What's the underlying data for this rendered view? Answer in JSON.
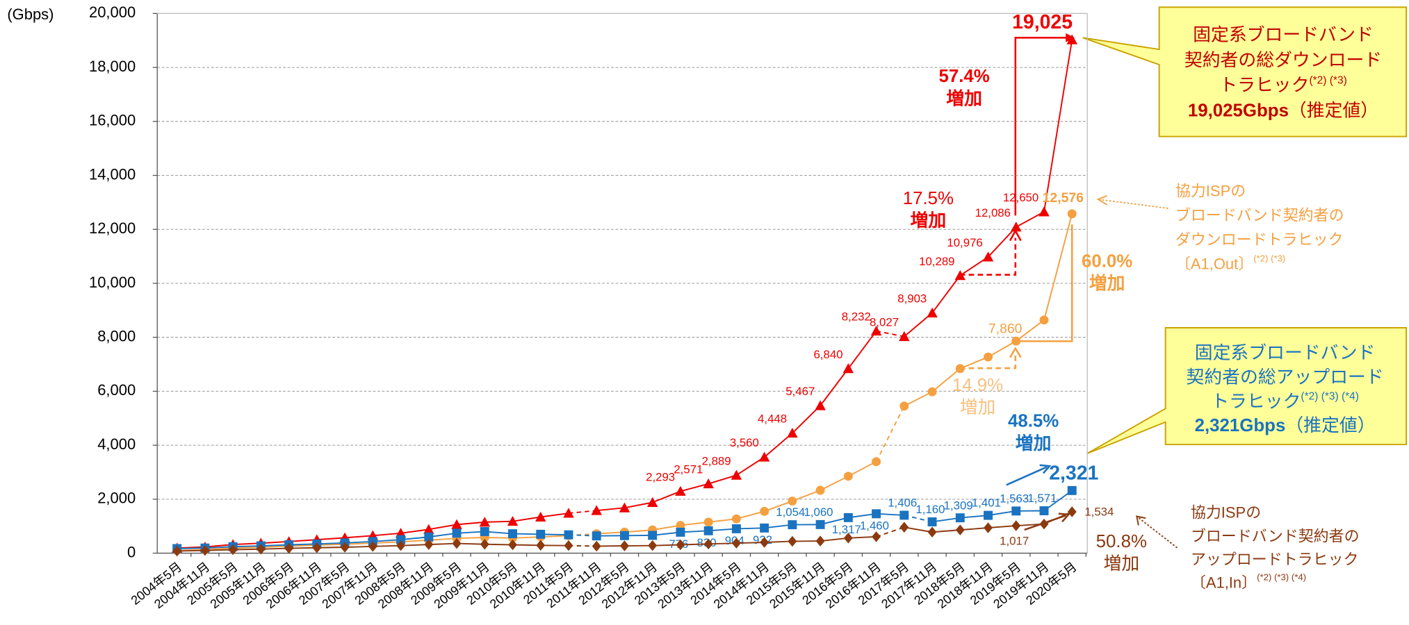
{
  "chart_data": {
    "type": "line",
    "y_axis_label": "(Gbps)",
    "categories": [
      "2004年5月",
      "2004年11月",
      "2005年5月",
      "2005年11月",
      "2006年5月",
      "2006年11月",
      "2007年5月",
      "2007年11月",
      "2008年5月",
      "2008年11月",
      "2009年5月",
      "2009年11月",
      "2010年5月",
      "2010年11月",
      "2011年5月",
      "2011年11月",
      "2012年5月",
      "2012年11月",
      "2013年5月",
      "2013年11月",
      "2014年5月",
      "2014年11月",
      "2015年5月",
      "2015年11月",
      "2016年5月",
      "2016年11月",
      "2017年5月",
      "2017年11月",
      "2018年5月",
      "2018年11月",
      "2019年5月",
      "2019年11月",
      "2020年5月"
    ],
    "ylim": [
      0,
      20000
    ],
    "yticks": [
      0,
      {
        "value": 2000,
        "label": "2,000"
      },
      {
        "value": 4000,
        "label": "4,000"
      },
      {
        "value": 6000,
        "label": "6,000"
      },
      {
        "value": 8000,
        "label": "8,000"
      },
      {
        "value": 10000,
        "label": "10,000"
      },
      {
        "value": 12000,
        "label": "12,000"
      },
      {
        "value": 14000,
        "label": "14,000"
      },
      {
        "value": 16000,
        "label": "16,000"
      },
      {
        "value": 18000,
        "label": "18,000"
      },
      {
        "value": 20000,
        "label": "20,000"
      }
    ],
    "grid": true,
    "series": [
      {
        "name": "固定系ブロードバンド契約者の総ダウンロードトラヒック",
        "color": "#ee0000",
        "marker": "triangle",
        "dashed_segments": [
          14,
          25
        ],
        "values": [
          190,
          230,
          320,
          370,
          430,
          500,
          570,
          650,
          740,
          880,
          1060,
          1150,
          1180,
          1340,
          1480,
          1580,
          1680,
          1880,
          2293,
          2571,
          2889,
          3560,
          4448,
          5467,
          6840,
          8232,
          8027,
          8903,
          10289,
          10976,
          12086,
          12650,
          19025
        ],
        "value_labels": [
          null,
          null,
          null,
          null,
          null,
          null,
          null,
          null,
          null,
          null,
          null,
          null,
          null,
          null,
          null,
          null,
          null,
          null,
          "2,293",
          "2,571",
          "2,889",
          "3,560",
          "4,448",
          "5,467",
          "6,840",
          "8,232",
          "8,027",
          "8,903",
          "10,289",
          "10,976",
          "12,086",
          "12,650",
          "19,025"
        ]
      },
      {
        "name": "協力ISPのブロードバンド契約者のダウンロードトラヒック",
        "color": "#f4a040",
        "marker": "circle",
        "dashed_segments": [
          14,
          25
        ],
        "values": [
          100,
          130,
          190,
          220,
          260,
          300,
          330,
          370,
          420,
          480,
          550,
          580,
          560,
          600,
          650,
          720,
          780,
          860,
          1030,
          1150,
          1270,
          1550,
          1930,
          2330,
          2850,
          3390,
          5450,
          5980,
          6840,
          7270,
          7860,
          8640,
          12576
        ],
        "value_labels": [
          null,
          null,
          null,
          null,
          null,
          null,
          null,
          null,
          null,
          null,
          null,
          null,
          null,
          null,
          null,
          null,
          null,
          null,
          null,
          null,
          null,
          null,
          null,
          null,
          null,
          null,
          null,
          null,
          null,
          null,
          "7,860",
          null,
          "12,576"
        ]
      },
      {
        "name": "固定系ブロードバンド契約者の総アップロードトラヒック",
        "color": "#1a73c0",
        "marker": "square",
        "dashed_segments": [
          14,
          26
        ],
        "values": [
          170,
          190,
          240,
          270,
          310,
          340,
          380,
          430,
          500,
          600,
          740,
          800,
          720,
          700,
          680,
          640,
          650,
          660,
          776,
          830,
          904,
          932,
          1054,
          1060,
          1317,
          1460,
          1406,
          1160,
          1309,
          1401,
          1563,
          1571,
          2321
        ],
        "value_labels": [
          null,
          null,
          null,
          null,
          null,
          null,
          null,
          null,
          null,
          null,
          null,
          null,
          null,
          null,
          null,
          null,
          null,
          null,
          "776",
          "830",
          "904",
          "932",
          "1,054",
          "1,060",
          "1,317",
          "1,460",
          "1,406",
          "1,160",
          "1,309",
          "1,401",
          "1,563",
          "1,571",
          "2,321"
        ]
      },
      {
        "name": "協力ISPのブロードバンド契約者のアップロードトラヒック",
        "color": "#8b3a10",
        "marker": "diamond",
        "dashed_segments": [
          14,
          25
        ],
        "values": [
          80,
          100,
          130,
          150,
          180,
          200,
          220,
          250,
          280,
          320,
          360,
          330,
          310,
          290,
          280,
          260,
          270,
          280,
          310,
          340,
          370,
          400,
          440,
          450,
          560,
          610,
          960,
          780,
          860,
          940,
          1017,
          1080,
          1534
        ],
        "value_labels": [
          null,
          null,
          null,
          null,
          null,
          null,
          null,
          null,
          null,
          null,
          null,
          null,
          null,
          null,
          null,
          null,
          null,
          null,
          null,
          null,
          null,
          null,
          null,
          null,
          null,
          null,
          null,
          null,
          null,
          null,
          "1,017",
          null,
          "1,534"
        ]
      }
    ],
    "annotations": [
      {
        "lines": [
          "57.4%",
          "増加"
        ]
      },
      {
        "lines": [
          "17.5%",
          "増加"
        ]
      },
      {
        "lines": [
          "60.0%",
          "増加"
        ]
      },
      {
        "lines": [
          "14.9%",
          "増加"
        ]
      },
      {
        "lines": [
          "48.5%",
          "増加"
        ]
      },
      {
        "lines": [
          "50.8%",
          "増加"
        ]
      }
    ],
    "callouts": [
      {
        "lines": [
          {
            "text": "固定系ブロードバンド"
          },
          {
            "text": "契約者の総ダウンロード"
          },
          {
            "text": "トラヒック",
            "sup": "(*2) (*3)"
          },
          {
            "text": "19,025Gbps",
            "rest": "（推定値）"
          }
        ]
      },
      {
        "lines": [
          {
            "text": "協力ISPの"
          },
          {
            "text": "ブロードバンド契約者の"
          },
          {
            "text": "ダウンロードトラヒック"
          },
          {
            "text": "〔A1,Out〕",
            "sup": "(*2) (*3)"
          }
        ]
      },
      {
        "lines": [
          {
            "text": "固定系ブロードバンド"
          },
          {
            "text": "契約者の総アップロード"
          },
          {
            "text": "トラヒック",
            "sup": "(*2) (*3) (*4)"
          },
          {
            "text": "2,321Gbps",
            "rest": "（推定値）"
          }
        ]
      },
      {
        "lines": [
          {
            "text": "協力ISPの"
          },
          {
            "text": "ブロードバンド契約者の"
          },
          {
            "text": "アップロードトラヒック"
          },
          {
            "text": "〔A1,In〕",
            "sup": "(*2) (*3) (*4)"
          }
        ]
      }
    ]
  }
}
